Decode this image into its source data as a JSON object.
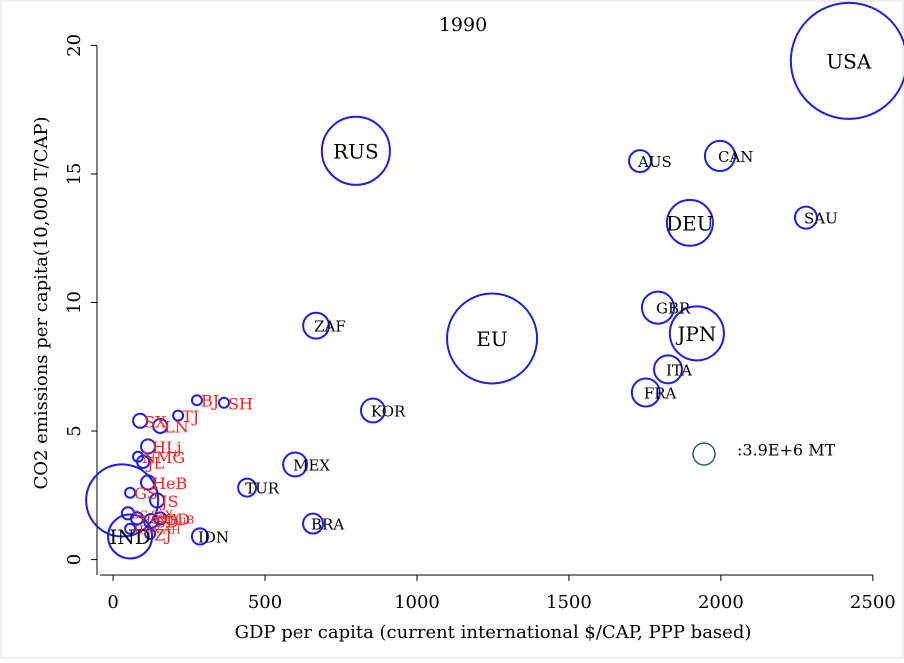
{
  "chart_data": {
    "type": "scatter",
    "title": "1990",
    "x_label": "GDP per capita (current international $/CAP, PPP based)",
    "y_label": "CO2 emissions per capita(10,000 T/CAP)",
    "xlim": [
      -43,
      2540
    ],
    "ylim": [
      -0.6,
      20.6
    ],
    "xticks": [
      0,
      500,
      1000,
      1500,
      2000,
      2500
    ],
    "yticks": [
      0,
      5,
      10,
      15,
      20
    ],
    "marker_color": "#1f1fe0",
    "labels": [
      "USA",
      "RUS",
      "AUS",
      "CAN",
      "DEU",
      "SAU",
      "EU",
      "GBR",
      "JPN",
      "ZAF",
      "ITA",
      "FRA",
      "KOR",
      "MEX",
      "TUR",
      "BRA",
      "IDN",
      null,
      "IND",
      "SX",
      "BJ",
      "SH",
      "TJ",
      "LN",
      "HLj",
      "NMG",
      "JL",
      "GS",
      "HeB",
      "JS",
      "SD",
      "GD",
      "ZJ",
      "SC,SaX",
      "HeN,HuB",
      "HuN,AH"
    ],
    "label_colors": [
      "#000000",
      "#000000",
      "#000000",
      "#000000",
      "#000000",
      "#000000",
      "#000000",
      "#000000",
      "#000000",
      "#000000",
      "#000000",
      "#000000",
      "#000000",
      "#000000",
      "#000000",
      "#000000",
      "#000000",
      "#000000",
      "#000000",
      "#ff2020",
      "#ff2020",
      "#ff2020",
      "#ff2020",
      "#ff2020",
      "#ff2020",
      "#ff2020",
      "#ff2020",
      "#ff2020",
      "#ff2020",
      "#ff2020",
      "#ff2020",
      "#ff2020",
      "#ff2020",
      "#ff2020",
      "#ff2020",
      "#ff2020"
    ],
    "x": [
      2421,
      799,
      1734,
      1997,
      1898,
      2280,
      1247,
      1793,
      1921,
      668,
      1826,
      1753,
      855,
      599,
      441,
      658,
      286,
      30,
      56,
      89,
      276,
      365,
      214,
      155,
      115,
      82,
      99,
      56,
      115,
      145,
      125,
      155,
      122,
      49,
      79,
      56
    ],
    "values": [
      19.4,
      15.9,
      15.5,
      15.7,
      13.1,
      13.3,
      8.6,
      9.8,
      8.8,
      9.1,
      7.4,
      6.5,
      5.8,
      3.7,
      2.8,
      1.4,
      0.9,
      2.3,
      0.9,
      5.4,
      6.2,
      6.1,
      5.6,
      5.2,
      4.4,
      4.0,
      3.8,
      2.6,
      3.0,
      2.3,
      1.5,
      1.6,
      1.0,
      1.8,
      1.6,
      1.2
    ],
    "sizes": [
      108400000,
      37300000,
      3900000,
      7300000,
      17000000,
      3900000,
      65300000,
      8300000,
      23500000,
      5400000,
      6300000,
      6300000,
      4600000,
      4600000,
      2600000,
      3200000,
      2100000,
      41800000,
      15600000,
      1600000,
      800000,
      800000,
      800000,
      1600000,
      1600000,
      800000,
      1200000,
      800000,
      1600000,
      1600000,
      1600000,
      1200000,
      800000,
      1200000,
      1200000,
      800000
    ],
    "size_legend": {
      "value": 3900000,
      "label": ":3.9E+6 MT"
    }
  }
}
